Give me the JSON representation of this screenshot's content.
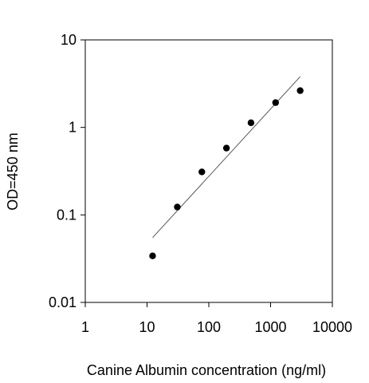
{
  "chart_data": {
    "type": "scatter",
    "xlabel": "Canine Albumin concentration (ng/ml)",
    "ylabel": "OD=450 nm",
    "x_scale": "log",
    "y_scale": "log",
    "xlim": [
      1,
      10000
    ],
    "ylim": [
      0.01,
      10
    ],
    "x_ticks": [
      "1",
      "10",
      "100",
      "1000",
      "10000"
    ],
    "y_ticks": [
      "0.01",
      "0.1",
      "1",
      "10"
    ],
    "grid": false,
    "series": [
      {
        "points": [
          {
            "x": 12.3,
            "y": 0.034
          },
          {
            "x": 30.9,
            "y": 0.123
          },
          {
            "x": 77.2,
            "y": 0.31
          },
          {
            "x": 193,
            "y": 0.58
          },
          {
            "x": 482,
            "y": 1.13
          },
          {
            "x": 1206,
            "y": 1.92
          },
          {
            "x": 3016,
            "y": 2.63
          }
        ]
      }
    ],
    "fit_line": {
      "from": {
        "x": 12.3,
        "y": 0.055
      },
      "to": {
        "x": 3016,
        "y": 3.8
      }
    },
    "colors": {
      "marker": "#000000",
      "axis": "#000000",
      "fit_line": "#555555"
    }
  }
}
